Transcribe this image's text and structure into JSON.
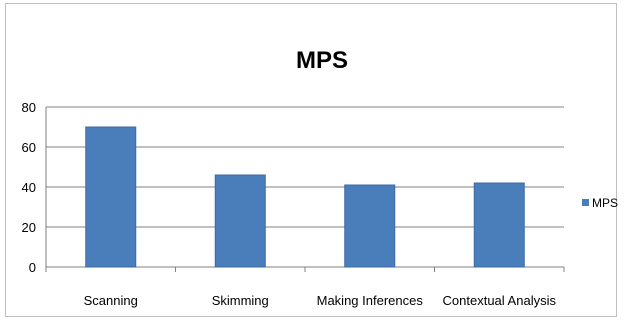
{
  "chart_data": {
    "type": "bar",
    "title": "MPS",
    "xlabel": "",
    "ylabel": "",
    "categories": [
      "Scanning",
      "Skimming",
      "Making Inferences",
      "Contextual Analysis"
    ],
    "series": [
      {
        "name": "MPS",
        "values": [
          70,
          46,
          41,
          42
        ]
      }
    ],
    "ylim": [
      0,
      80
    ],
    "yticks": [
      "0",
      "20",
      "40",
      "60",
      "80"
    ],
    "grid": true,
    "legend_position": "right",
    "colors": {
      "bar": "#4a7ebb",
      "bar_edge": "#3c6aa5",
      "grid": "#808080",
      "axis": "#808080"
    }
  }
}
